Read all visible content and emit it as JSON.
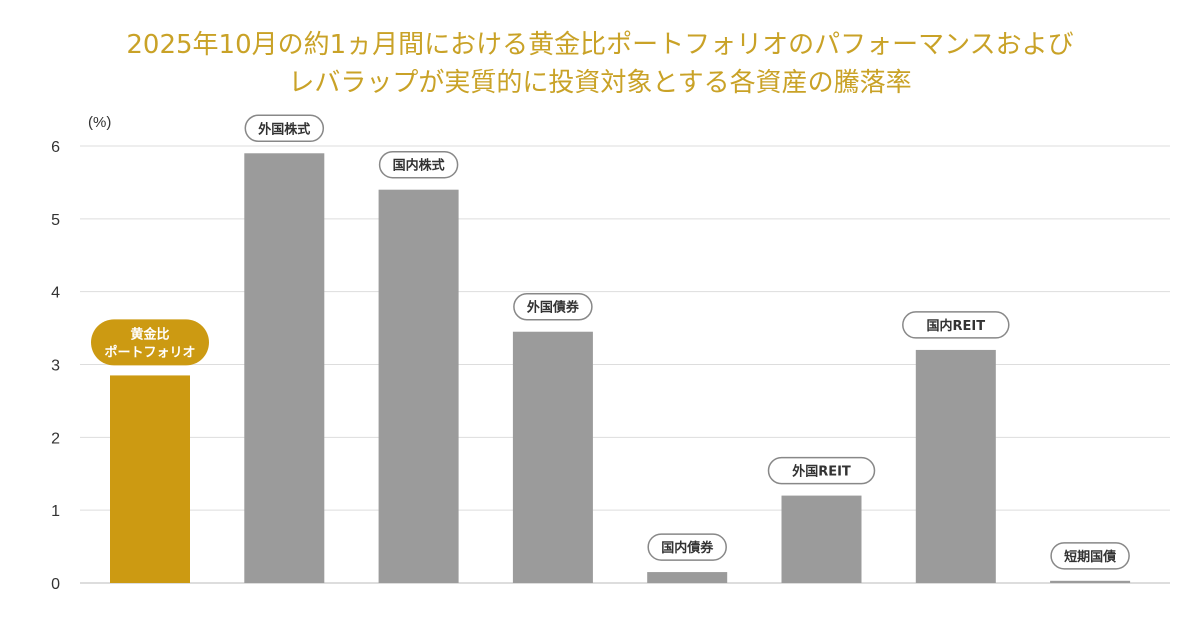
{
  "title": {
    "line1": "2025年10月の約1ヵ月間における黄金比ポートフォリオのパフォーマンスおよび",
    "line2": "レバラップが実質的に投資対象とする各資産の騰落率"
  },
  "colors": {
    "title": "#c9a227",
    "highlight_bar": "#cc9a12",
    "bar": "#9b9b9b",
    "grid": "#dddddd",
    "label_border": "#888888"
  },
  "chart_data": {
    "type": "bar",
    "unit_label": "(%)",
    "ylim": [
      0,
      6
    ],
    "yticks": [
      "0",
      "1",
      "2",
      "3",
      "4",
      "5",
      "6"
    ],
    "grid": true,
    "categories": [
      "黄金比\nポートフォリオ",
      "外国株式",
      "国内株式",
      "外国債券",
      "国内債券",
      "外国REIT",
      "国内REIT",
      "短期国債"
    ],
    "values": [
      2.85,
      5.9,
      5.4,
      3.45,
      0.15,
      1.2,
      3.2,
      0.03
    ],
    "highlight_index": 0
  }
}
